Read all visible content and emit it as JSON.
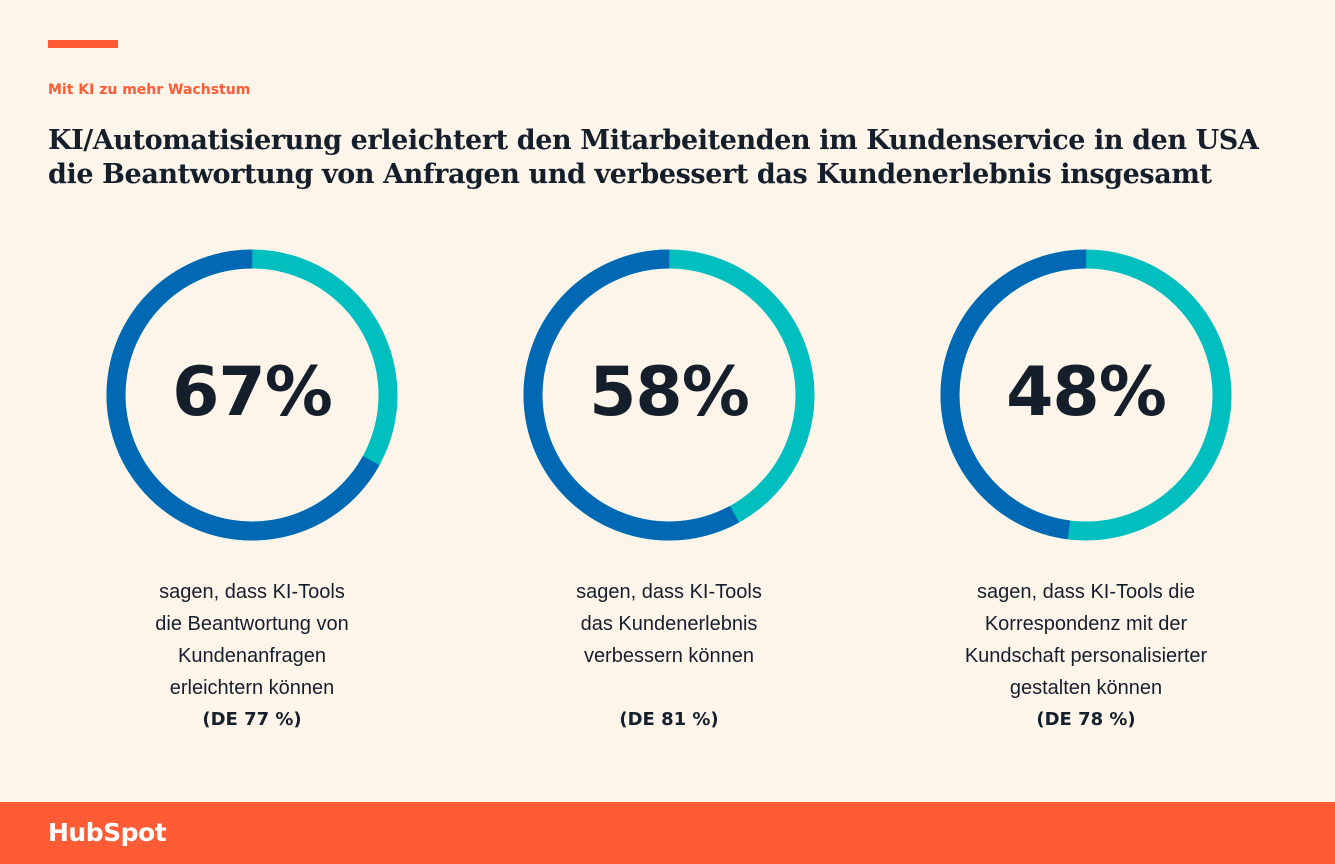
{
  "header": {
    "eyebrow": "Mit KI zu mehr Wachstum",
    "title": "KI/Automatisierung erleichtert den Mitarbeitenden im Kundenservice in den USA die Beantwortung von Anfragen und verbessert das Kundenerlebnis insgesamt"
  },
  "colors": {
    "value_arc": "#0168b3",
    "remainder_arc": "#00bfbe",
    "accent": "#ff5c35",
    "background": "#fdf4ea"
  },
  "chart_data": [
    {
      "type": "pie",
      "value_percent": 67,
      "value_label": "67%",
      "caption_lines": [
        "sagen, dass KI-Tools",
        "die Beantwortung von",
        "Kundenanfragen",
        "erleichtern können"
      ],
      "germany_label": "(DE 77 %)"
    },
    {
      "type": "pie",
      "value_percent": 58,
      "value_label": "58%",
      "caption_lines": [
        "sagen, dass KI-Tools",
        "das Kundenerlebnis",
        "verbessern können",
        ""
      ],
      "germany_label": "(DE 81 %)"
    },
    {
      "type": "pie",
      "value_percent": 48,
      "value_label": "48%",
      "caption_lines": [
        "sagen, dass KI-Tools die",
        "Korrespondenz mit der",
        "Kundschaft personalisierter",
        "gestalten können"
      ],
      "germany_label": "(DE 78 %)"
    }
  ],
  "footer": {
    "logo_text": "HubSpot"
  }
}
